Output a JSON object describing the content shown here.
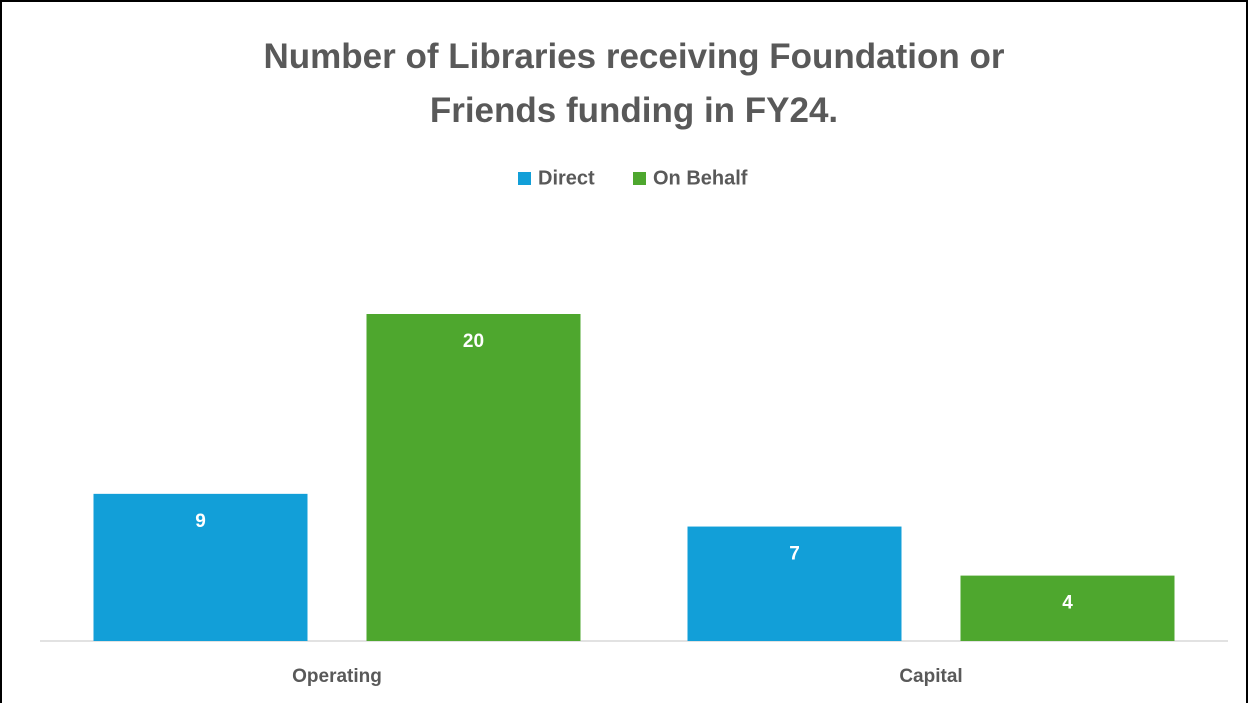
{
  "chart_data": {
    "type": "bar",
    "title": "Number of Libraries receiving Foundation or Friends funding in FY24.",
    "categories": [
      "Operating",
      "Capital"
    ],
    "series": [
      {
        "name": "Direct",
        "color": "#129fd8",
        "values": [
          9,
          7
        ]
      },
      {
        "name": "On Behalf",
        "color": "#4ea72e",
        "values": [
          20,
          4
        ]
      }
    ],
    "ylim": [
      0,
      20
    ],
    "legend": "top",
    "grid": false
  }
}
